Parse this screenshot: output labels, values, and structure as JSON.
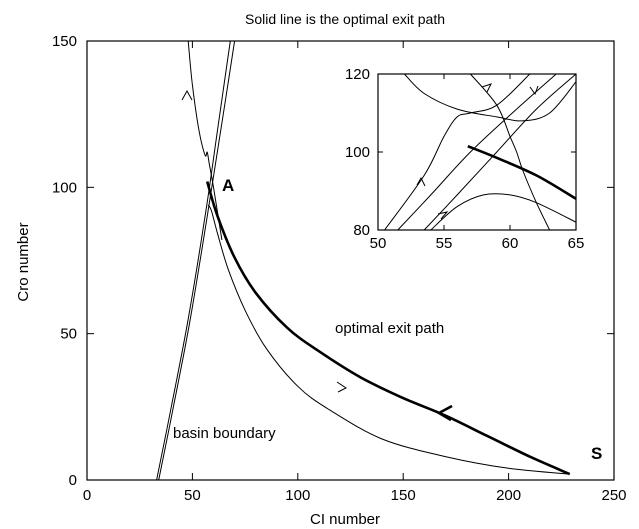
{
  "chart_data": {
    "type": "line",
    "title": "Solid line is the optimal exit path",
    "xlabel": "CI number",
    "ylabel": "Cro number",
    "xlim": [
      0,
      250
    ],
    "ylim": [
      0,
      150
    ],
    "xticks": [
      "0",
      "50",
      "100",
      "150",
      "200",
      "250"
    ],
    "yticks": [
      "0",
      "50",
      "100",
      "150"
    ],
    "annotations": [
      {
        "text": "A",
        "x": 58,
        "y": 102
      },
      {
        "text": "S",
        "x": 229,
        "y": 2
      },
      {
        "text": "optimal exit path",
        "x": 125,
        "y": 50
      },
      {
        "text": "basin boundary",
        "x": 37,
        "y": 15
      }
    ],
    "series": [
      {
        "name": "optimal exit path",
        "style": "bold",
        "x": [
          57,
          62,
          70,
          80,
          95,
          110,
          130,
          150,
          170,
          190,
          210,
          229
        ],
        "y": [
          102,
          90,
          76,
          64,
          52,
          44,
          35,
          28,
          22,
          15,
          8,
          2
        ]
      },
      {
        "name": "",
        "style": "thin",
        "x": [
          229,
          200,
          170,
          140,
          115,
          100,
          85,
          75,
          67,
          62,
          59,
          57.5
        ],
        "y": [
          2,
          4,
          8,
          14,
          24,
          32,
          45,
          58,
          72,
          84,
          92,
          94
        ]
      },
      {
        "name": "basin boundary",
        "style": "thin",
        "x": [
          33,
          40,
          48,
          56,
          62,
          68
        ],
        "y": [
          0,
          25,
          55,
          90,
          120,
          150
        ]
      },
      {
        "name": "",
        "style": "thin",
        "x": [
          34,
          41,
          49,
          57,
          64,
          70
        ],
        "y": [
          0,
          25,
          55,
          90,
          122,
          150
        ]
      },
      {
        "name": "",
        "style": "thin",
        "x": [
          48,
          50,
          53,
          56,
          57,
          58,
          60,
          64
        ],
        "y": [
          150,
          135,
          120,
          111,
          112,
          108,
          100,
          82
        ]
      }
    ],
    "inset": {
      "xlim": [
        50,
        65
      ],
      "ylim": [
        80,
        120
      ],
      "xticks": [
        "50",
        "55",
        "60",
        "65"
      ],
      "yticks": [
        "80",
        "100",
        "120"
      ],
      "series": [
        {
          "style": "bold",
          "x": [
            56.8,
            59,
            62,
            65
          ],
          "y": [
            101.5,
            98.5,
            94,
            88
          ]
        },
        {
          "style": "thin",
          "x": [
            51.5,
            54,
            57,
            60.5,
            63.5
          ],
          "y": [
            80,
            89,
            100,
            111,
            120
          ]
        },
        {
          "style": "thin",
          "x": [
            53.5,
            56,
            59,
            62,
            65
          ],
          "y": [
            80,
            89,
            100,
            111,
            120
          ]
        },
        {
          "style": "thin",
          "x": [
            50.5,
            53.5,
            55,
            56,
            57,
            59,
            61.5
          ],
          "y": [
            80,
            94,
            104,
            109,
            110,
            112,
            120
          ]
        },
        {
          "style": "thin",
          "x": [
            52,
            53.5,
            56,
            59,
            61,
            63,
            65
          ],
          "y": [
            120,
            115,
            111,
            109,
            108,
            110,
            118
          ]
        },
        {
          "style": "thin",
          "x": [
            57,
            59,
            60,
            60.5,
            61,
            62,
            63
          ],
          "y": [
            120,
            112,
            104,
            100,
            95,
            87,
            80
          ]
        },
        {
          "style": "thin",
          "x": [
            54,
            56,
            58,
            60,
            62,
            65
          ],
          "y": [
            80,
            86,
            89,
            89,
            87,
            82
          ]
        }
      ]
    }
  }
}
